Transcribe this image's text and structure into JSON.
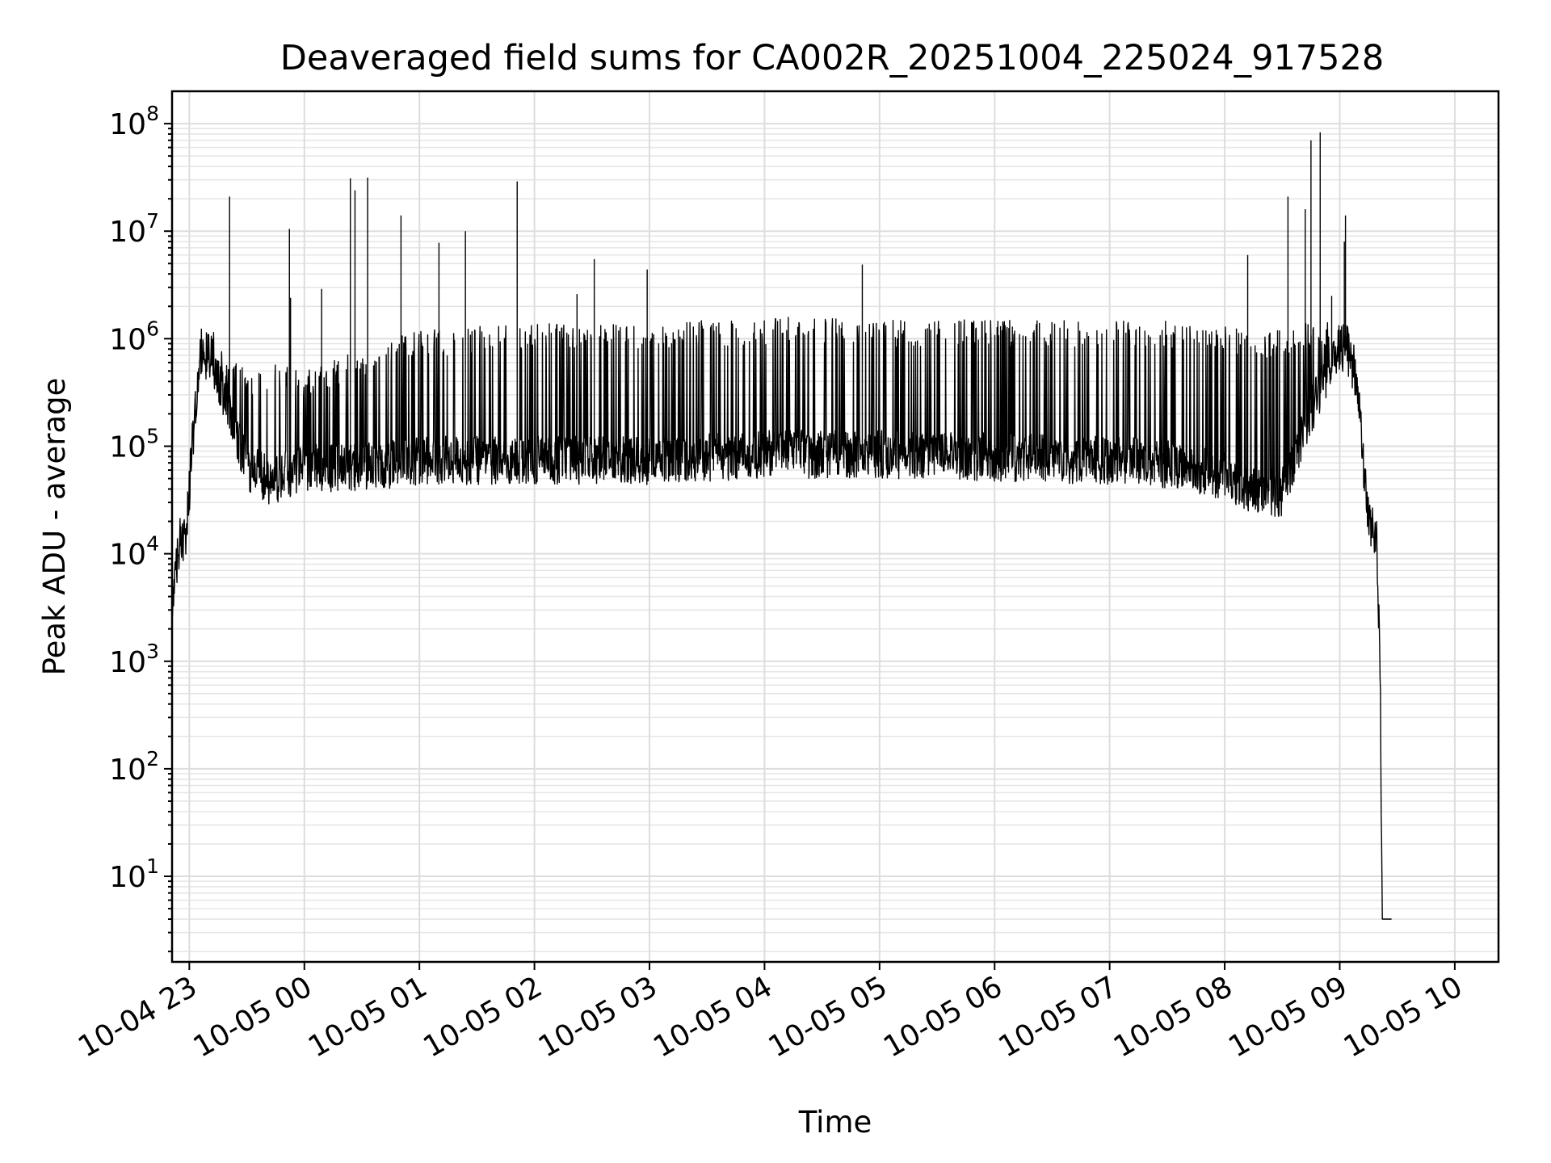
{
  "chart_data": {
    "type": "line",
    "title": "Deaveraged field sums for CA002R_20251004_225024_917528",
    "xlabel": "Time",
    "ylabel": "Peak ADU - average",
    "yscale": "log",
    "ylim": [
      1.6,
      200000000
    ],
    "xlim_hours": [
      -0.15,
      11.38
    ],
    "grid": true,
    "x_ticks": [
      {
        "label": "10-04 23",
        "hour": 0
      },
      {
        "label": "10-05 00",
        "hour": 1
      },
      {
        "label": "10-05 01",
        "hour": 2
      },
      {
        "label": "10-05 02",
        "hour": 3
      },
      {
        "label": "10-05 03",
        "hour": 4
      },
      {
        "label": "10-05 04",
        "hour": 5
      },
      {
        "label": "10-05 05",
        "hour": 6
      },
      {
        "label": "10-05 06",
        "hour": 7
      },
      {
        "label": "10-05 07",
        "hour": 8
      },
      {
        "label": "10-05 08",
        "hour": 9
      },
      {
        "label": "10-05 09",
        "hour": 10
      },
      {
        "label": "10-05 10",
        "hour": 11
      }
    ],
    "y_ticks": [
      {
        "base": "10",
        "exp": "1",
        "value": 10
      },
      {
        "base": "10",
        "exp": "2",
        "value": 100
      },
      {
        "base": "10",
        "exp": "3",
        "value": 1000
      },
      {
        "base": "10",
        "exp": "4",
        "value": 10000
      },
      {
        "base": "10",
        "exp": "5",
        "value": 100000
      },
      {
        "base": "10",
        "exp": "6",
        "value": 1000000
      },
      {
        "base": "10",
        "exp": "7",
        "value": 10000000
      },
      {
        "base": "10",
        "exp": "8",
        "value": 100000000
      }
    ],
    "series": [
      {
        "name": "Peak ADU - average",
        "color": "#000000",
        "envelope_points": [
          {
            "hour": -0.15,
            "baseline": 3000,
            "upper": 4000
          },
          {
            "hour": -0.08,
            "baseline": 14000,
            "upper": 20000
          },
          {
            "hour": -0.03,
            "baseline": 12000,
            "upper": 22000
          },
          {
            "hour": 0.02,
            "baseline": 80000,
            "upper": 150000
          },
          {
            "hour": 0.1,
            "baseline": 700000,
            "upper": 1000000
          },
          {
            "hour": 0.2,
            "baseline": 600000,
            "upper": 1200000
          },
          {
            "hour": 0.3,
            "baseline": 300000,
            "upper": 800000
          },
          {
            "hour": 0.5,
            "baseline": 60000,
            "upper": 500000
          },
          {
            "hour": 0.7,
            "baseline": 45000,
            "upper": 600000
          },
          {
            "hour": 1.0,
            "baseline": 60000,
            "upper": 500000
          },
          {
            "hour": 1.5,
            "baseline": 60000,
            "upper": 800000
          },
          {
            "hour": 2.0,
            "baseline": 70000,
            "upper": 1200000
          },
          {
            "hour": 3.0,
            "baseline": 70000,
            "upper": 1400000
          },
          {
            "hour": 4.0,
            "baseline": 70000,
            "upper": 1400000
          },
          {
            "hour": 5.0,
            "baseline": 80000,
            "upper": 1600000
          },
          {
            "hour": 6.0,
            "baseline": 80000,
            "upper": 1500000
          },
          {
            "hour": 7.0,
            "baseline": 75000,
            "upper": 1500000
          },
          {
            "hour": 8.0,
            "baseline": 70000,
            "upper": 1500000
          },
          {
            "hour": 8.5,
            "baseline": 65000,
            "upper": 1500000
          },
          {
            "hour": 9.0,
            "baseline": 50000,
            "upper": 1300000
          },
          {
            "hour": 9.2,
            "baseline": 35000,
            "upper": 1200000
          },
          {
            "hour": 9.5,
            "baseline": 35000,
            "upper": 1200000
          },
          {
            "hour": 9.7,
            "baseline": 150000,
            "upper": 1400000
          },
          {
            "hour": 9.9,
            "baseline": 500000,
            "upper": 1600000
          },
          {
            "hour": 10.05,
            "baseline": 850000,
            "upper": 1200000
          },
          {
            "hour": 10.15,
            "baseline": 400000,
            "upper": 600000
          },
          {
            "hour": 10.2,
            "baseline": 80000,
            "upper": 120000
          },
          {
            "hour": 10.25,
            "baseline": 20000,
            "upper": 25000
          },
          {
            "hour": 10.32,
            "baseline": 14000,
            "upper": 16000
          },
          {
            "hour": 10.35,
            "baseline": 1000,
            "upper": 1500
          },
          {
            "hour": 10.37,
            "baseline": 4,
            "upper": 4
          },
          {
            "hour": 10.45,
            "baseline": 4,
            "upper": 4
          }
        ],
        "spikes": [
          {
            "hour": 0.35,
            "value": 21000000
          },
          {
            "hour": 0.87,
            "value": 10500000
          },
          {
            "hour": 0.88,
            "value": 2400000
          },
          {
            "hour": 1.15,
            "value": 2900000
          },
          {
            "hour": 1.4,
            "value": 31000000
          },
          {
            "hour": 1.44,
            "value": 24000000
          },
          {
            "hour": 1.55,
            "value": 31500000
          },
          {
            "hour": 1.84,
            "value": 14000000
          },
          {
            "hour": 2.17,
            "value": 7800000
          },
          {
            "hour": 2.4,
            "value": 10000000
          },
          {
            "hour": 2.85,
            "value": 29000000
          },
          {
            "hour": 3.37,
            "value": 2600000
          },
          {
            "hour": 3.52,
            "value": 5500000
          },
          {
            "hour": 3.98,
            "value": 4400000
          },
          {
            "hour": 5.85,
            "value": 4900000
          },
          {
            "hour": 9.2,
            "value": 6000000
          },
          {
            "hour": 9.55,
            "value": 21000000
          },
          {
            "hour": 9.7,
            "value": 16000000
          },
          {
            "hour": 9.75,
            "value": 70000000
          },
          {
            "hour": 9.83,
            "value": 83000000
          },
          {
            "hour": 9.93,
            "value": 2500000
          },
          {
            "hour": 10.05,
            "value": 14000000
          },
          {
            "hour": 10.04,
            "value": 8000000
          }
        ]
      }
    ]
  }
}
